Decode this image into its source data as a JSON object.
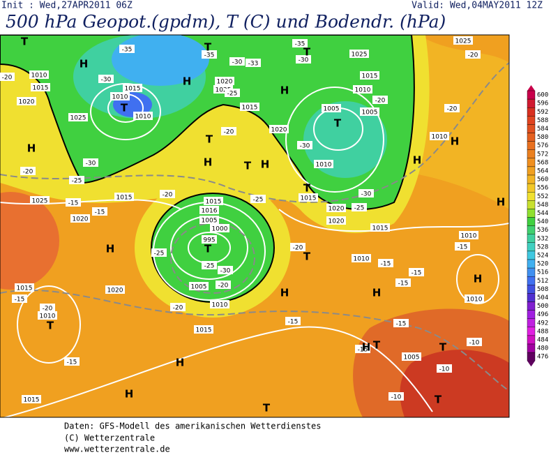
{
  "header": {
    "init": "Init : Wed,27APR2011 06Z",
    "valid": "Valid: Wed,04MAY2011 12Z",
    "title": "500 hPa Geopot.(gpdm), T (C) und Bodendr. (hPa)"
  },
  "map": {
    "highs": [
      "H",
      "H",
      "H",
      "H",
      "H",
      "H",
      "H",
      "H",
      "H",
      "H",
      "H",
      "H",
      "H",
      "H",
      "H",
      "H"
    ],
    "lows": [
      "T",
      "T",
      "T",
      "T",
      "T",
      "T",
      "T",
      "T",
      "T",
      "T",
      "T",
      "T",
      "T",
      "T",
      "T"
    ],
    "isobar_labels": [
      "1010",
      "1015",
      "1020",
      "1025",
      "1010",
      "1015",
      "1010",
      "1020",
      "1025",
      "1015",
      "1020",
      "1005",
      "1005",
      "1010",
      "1015",
      "1025",
      "1025",
      "1010",
      "1010",
      "1015",
      "1015",
      "1016",
      "1005",
      "1000",
      "995",
      "1005",
      "1010",
      "1025",
      "1015",
      "1020",
      "1020",
      "1015",
      "1010",
      "1015",
      "1020",
      "1020",
      "1015",
      "1010",
      "1010",
      "1005",
      "1010",
      "1015"
    ],
    "isotherm_labels": [
      "-35",
      "-35",
      "-35",
      "-30",
      "-30",
      "-33",
      "-30",
      "-25",
      "-20",
      "-30",
      "-30",
      "-25",
      "-20",
      "-25",
      "-20",
      "-25",
      "-30",
      "-20",
      "-20",
      "-20",
      "-20",
      "-15",
      "-15",
      "-25",
      "-25",
      "-30",
      "-20",
      "-20",
      "-20",
      "-15",
      "-15",
      "-15",
      "-15",
      "-15",
      "-15",
      "-15",
      "-15",
      "-15",
      "-20",
      "-10",
      "-10",
      "-10"
    ]
  },
  "colorbar": {
    "levels": [
      600,
      596,
      592,
      588,
      584,
      580,
      576,
      572,
      568,
      564,
      560,
      556,
      552,
      548,
      544,
      540,
      536,
      532,
      528,
      524,
      520,
      516,
      512,
      508,
      504,
      500,
      496,
      492,
      488,
      484,
      480,
      476
    ],
    "colors": [
      "#c8004a",
      "#d01a30",
      "#d83020",
      "#e04420",
      "#e05020",
      "#e46020",
      "#e87020",
      "#ea8020",
      "#f09020",
      "#f0a020",
      "#f2b424",
      "#f2c828",
      "#f0e030",
      "#c8e030",
      "#90e030",
      "#40d040",
      "#40d070",
      "#40d0a0",
      "#40d0c0",
      "#40c8e0",
      "#40b0f0",
      "#4090f0",
      "#4070f0",
      "#4050e0",
      "#5030d0",
      "#8020d0",
      "#a020e0",
      "#c020e0",
      "#e020e0",
      "#d010c0",
      "#a000a0",
      "#600060"
    ]
  },
  "footer": {
    "source": "Daten: GFS-Modell des amerikanischen Wetterdienstes",
    "copyright": "(C) Wetterzentrale",
    "url": "www.wetterzentrale.de"
  }
}
